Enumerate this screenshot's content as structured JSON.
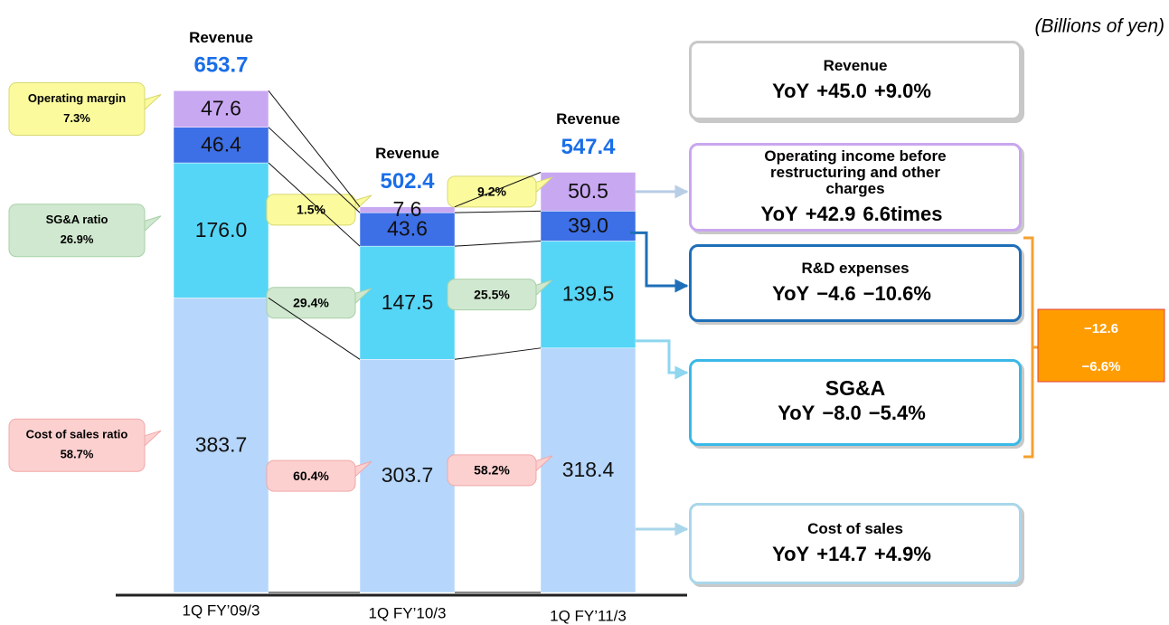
{
  "chart_data": {
    "type": "stacked_bar",
    "unit": "(Billions of yen)",
    "categories": [
      "1Q FY’09/3",
      "1Q FY’10/3",
      "1Q FY’11/3"
    ],
    "ylim": [
      0,
      700
    ],
    "total_name": "Revenue",
    "totals": [
      653.7,
      502.4,
      547.4
    ],
    "series": [
      {
        "name": "Cost of sales",
        "color": "#b6d6fb",
        "values": [
          383.7,
          303.7,
          318.4
        ],
        "value_labels": [
          "383.7",
          "303.7",
          "318.4"
        ],
        "ratio_name": "Cost of sales ratio",
        "ratios": [
          58.7,
          60.4,
          58.2
        ],
        "ratio_labels": [
          "58.7%",
          "60.4%",
          "58.2%"
        ],
        "yoy_name": "YoY",
        "yoy": [
          {
            "value": 14.7,
            "label": "+14.7"
          },
          {
            "value": 4.9,
            "label": "+4.9%"
          }
        ]
      },
      {
        "name": "SG&A",
        "color": "#56d6f7",
        "values": [
          176.0,
          147.5,
          139.5
        ],
        "value_labels": [
          "176.0",
          "147.5",
          "139.5"
        ],
        "ratio_name": "SG&A ratio",
        "ratios": [
          26.9,
          29.4,
          25.5
        ],
        "ratio_labels": [
          "26.9%",
          "29.4%",
          "25.5%"
        ],
        "yoy_name": "YoY",
        "yoy": [
          {
            "value": -8.0,
            "label": "−8.0"
          },
          {
            "value": -5.4,
            "label": "−5.4%"
          }
        ]
      },
      {
        "name": "R&D expenses",
        "color": "#3d6fe6",
        "values": [
          46.4,
          43.6,
          39.0
        ],
        "value_labels": [
          "46.4",
          "43.6",
          "39.0"
        ],
        "yoy_name": "YoY",
        "yoy": [
          {
            "value": -4.6,
            "label": "−4.6"
          },
          {
            "value": -10.6,
            "label": "−10.6%"
          }
        ]
      },
      {
        "name": "Operating income before restructuring and other charges",
        "color": "#c9a8f2",
        "values": [
          47.6,
          7.6,
          50.5
        ],
        "value_labels": [
          "47.6",
          "7.6",
          "50.5"
        ],
        "ratio_name": "Operating margin",
        "ratios": [
          7.3,
          1.5,
          9.2
        ],
        "ratio_labels": [
          "7.3%",
          "1.5%",
          "9.2%"
        ],
        "yoy_name": "YoY",
        "yoy": [
          {
            "value": 42.9,
            "label": "+42.9"
          },
          {
            "value": 6.6,
            "label": "6.6times"
          }
        ]
      }
    ],
    "revenue_yoy": {
      "name": "Revenue",
      "yoy_name": "YoY",
      "yoy": [
        {
          "value": 45.0,
          "label": "+45.0"
        },
        {
          "value": 9.0,
          "label": "+9.0%"
        }
      ]
    },
    "combined": [
      {
        "value": -12.6,
        "label": "−12.6"
      },
      {
        "value": -6.6,
        "label": "−6.6%"
      }
    ]
  }
}
